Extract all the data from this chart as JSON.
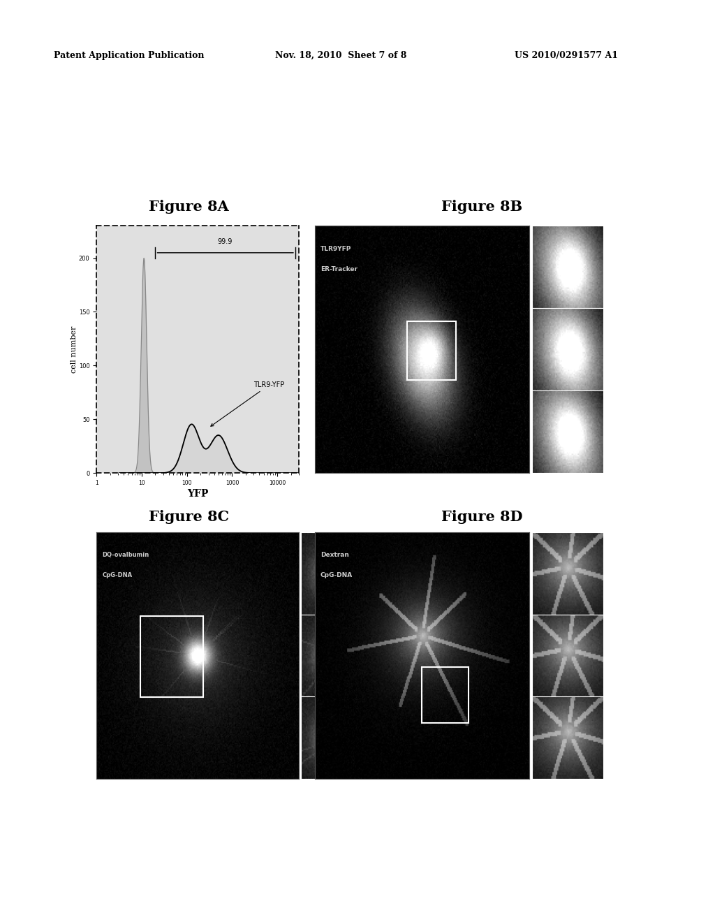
{
  "bg_color": "#ffffff",
  "header_left": "Patent Application Publication",
  "header_center": "Nov. 18, 2010  Sheet 7 of 8",
  "header_right": "US 2010/0291577 A1",
  "fig8A_title": "Figure 8A",
  "fig8B_title": "Figure 8B",
  "fig8C_title": "Figure 8C",
  "fig8D_title": "Figure 8D",
  "fig8A_ylabel": "cell number",
  "fig8A_xlabel": "YFP",
  "fig8A_label": "TLR9-YFP",
  "fig8A_annotation": "99.9",
  "fig8B_label1": "TLR9YFP",
  "fig8B_label2": "ER-Tracker",
  "fig8C_label1": "DQ-ovalbumin",
  "fig8C_label2": "CpG-DNA",
  "fig8D_label1": "Dextran",
  "fig8D_label2": "CpG-DNA"
}
